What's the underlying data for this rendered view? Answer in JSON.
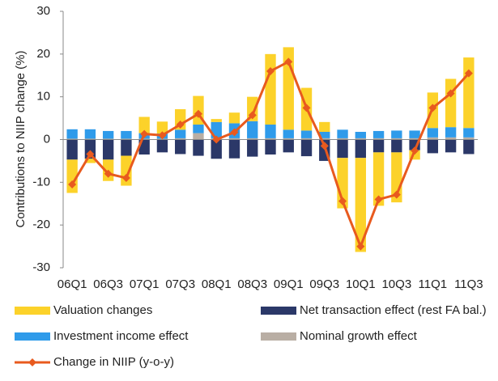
{
  "chart_data": {
    "type": "bar",
    "stacked": true,
    "y_label": "Contributions to NIIP change (%)",
    "categories": [
      "06Q1",
      null,
      "06Q3",
      null,
      "07Q1",
      null,
      "07Q3",
      null,
      "08Q1",
      null,
      "08Q3",
      null,
      "09Q1",
      null,
      "09Q3",
      null,
      "10Q1",
      null,
      "10Q3",
      null,
      "11Q1",
      null,
      "11Q3"
    ],
    "ylim": [
      -30,
      30
    ],
    "yticks": [
      -30,
      -20,
      -10,
      0,
      10,
      20,
      30
    ],
    "series": [
      {
        "name": "Valuation changes",
        "type": "bar",
        "color": "#FCD22A",
        "values": [
          -7.8,
          -1.0,
          -5,
          -7,
          3.8,
          2.8,
          4.8,
          6.7,
          0.7,
          2.5,
          5.7,
          16.5,
          19.3,
          10,
          2.3,
          -11.8,
          -22,
          -12.5,
          -11.7,
          -2.2,
          8.3,
          11.3,
          16.5
        ]
      },
      {
        "name": "Net transaction effect (rest FA bal.)",
        "type": "bar",
        "color": "#2B3868",
        "values": [
          -4.7,
          -4.5,
          -4.7,
          -3.8,
          -3.5,
          -3,
          -3.4,
          -3.8,
          -4.5,
          -4.4,
          -4,
          -3.5,
          -3,
          -3.9,
          -5,
          -4.3,
          -4.3,
          -3,
          -3,
          -2.5,
          -3.2,
          -3,
          -3.4
        ]
      },
      {
        "name": "Investment income effect",
        "type": "bar",
        "color": "#2F9BEA",
        "values": [
          2.2,
          2.2,
          1.8,
          1.8,
          1.3,
          1.2,
          2,
          2,
          3.8,
          3.5,
          4,
          3.2,
          2,
          1.8,
          1.5,
          2,
          1.5,
          1.7,
          1.8,
          1.8,
          2.2,
          2.4,
          2.2
        ]
      },
      {
        "name": "Nominal growth effect",
        "type": "bar",
        "color": "#B9AEA4",
        "values": [
          0.2,
          0.2,
          0.2,
          0.2,
          0.2,
          0.2,
          0.3,
          1.5,
          0.3,
          0.3,
          0.3,
          0.3,
          0.3,
          0.3,
          0.3,
          0.3,
          0.3,
          0.3,
          0.3,
          0.3,
          0.5,
          0.5,
          0.5
        ]
      },
      {
        "name": "Change in NIIP (y-o-y)",
        "type": "line",
        "color": "#E85A1E",
        "values": [
          -10.5,
          -3.4,
          -8,
          -9,
          1.3,
          1,
          3.5,
          6,
          0,
          1.7,
          5.7,
          16,
          18.2,
          7.4,
          -1.5,
          -14.4,
          -25,
          -14,
          -12.9,
          -2.6,
          7.4,
          10.8,
          15.5
        ]
      }
    ]
  }
}
